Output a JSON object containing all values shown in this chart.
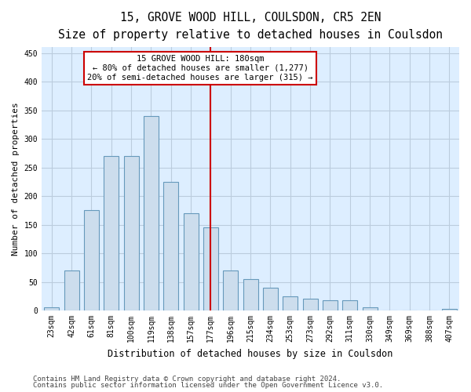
{
  "title": "15, GROVE WOOD HILL, COULSDON, CR5 2EN",
  "subtitle": "Size of property relative to detached houses in Coulsdon",
  "xlabel": "Distribution of detached houses by size in Coulsdon",
  "ylabel": "Number of detached properties",
  "categories": [
    "23sqm",
    "42sqm",
    "61sqm",
    "81sqm",
    "100sqm",
    "119sqm",
    "138sqm",
    "157sqm",
    "177sqm",
    "196sqm",
    "215sqm",
    "234sqm",
    "253sqm",
    "273sqm",
    "292sqm",
    "311sqm",
    "330sqm",
    "349sqm",
    "369sqm",
    "388sqm",
    "407sqm"
  ],
  "values": [
    5,
    70,
    175,
    270,
    270,
    340,
    225,
    170,
    145,
    70,
    55,
    40,
    25,
    20,
    18,
    18,
    5,
    0,
    0,
    0,
    3
  ],
  "bar_color": "#ccdded",
  "bar_edge_color": "#6699bb",
  "background_color": "#ffffff",
  "plot_bg_color": "#ddeeff",
  "grid_color": "#bbccdd",
  "annotation_line1": "15 GROVE WOOD HILL: 180sqm",
  "annotation_line2": "← 80% of detached houses are smaller (1,277)",
  "annotation_line3": "20% of semi-detached houses are larger (315) →",
  "annotation_box_facecolor": "#ffffff",
  "annotation_box_edgecolor": "#cc0000",
  "vline_x_index": 8,
  "vline_color": "#cc0000",
  "ylim": [
    0,
    460
  ],
  "yticks": [
    0,
    50,
    100,
    150,
    200,
    250,
    300,
    350,
    400,
    450
  ],
  "footer_line1": "Contains HM Land Registry data © Crown copyright and database right 2024.",
  "footer_line2": "Contains public sector information licensed under the Open Government Licence v3.0.",
  "title_fontsize": 10.5,
  "subtitle_fontsize": 9.5,
  "xlabel_fontsize": 8.5,
  "ylabel_fontsize": 8,
  "tick_fontsize": 7,
  "annot_fontsize": 7.5,
  "footer_fontsize": 6.5
}
